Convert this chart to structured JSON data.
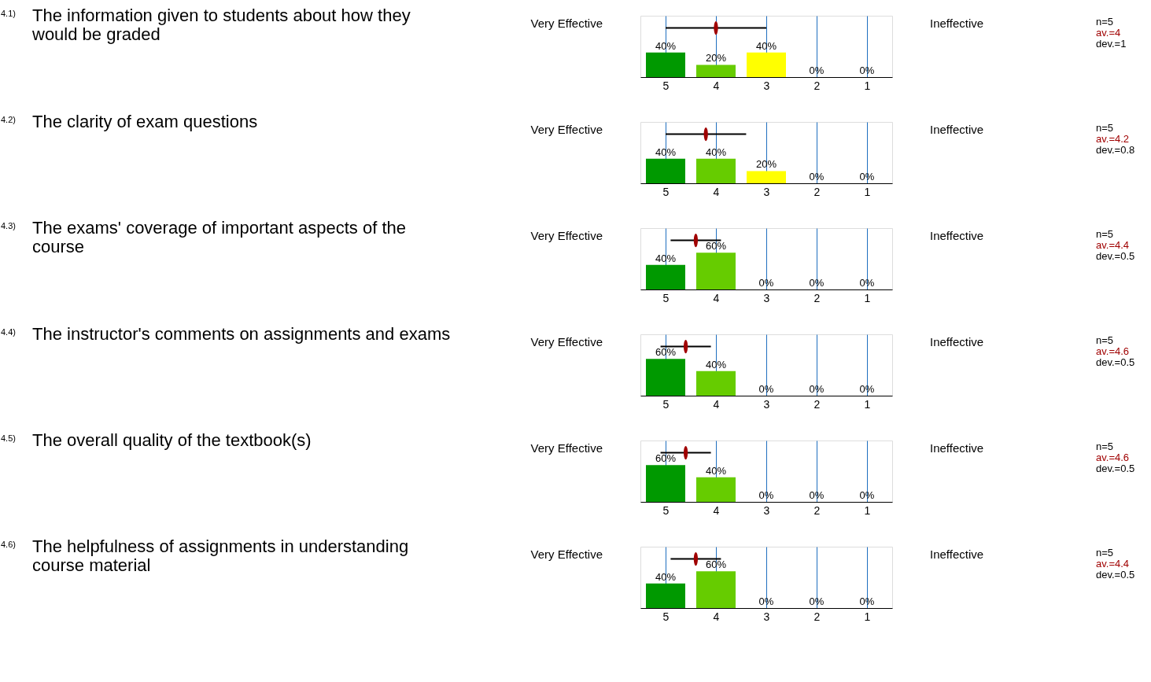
{
  "chart_data": [
    {
      "type": "bar",
      "x": [
        5,
        4,
        3,
        2,
        1
      ],
      "xlim": [
        5.5,
        0.5
      ],
      "xticks": [
        5,
        4,
        3,
        2,
        1
      ],
      "ylim": [
        0,
        100
      ],
      "grid": "x",
      "tick_labels": "x",
      "series": [
        {
          "values": [
            40,
            20,
            40,
            0,
            0
          ],
          "colors": [
            "#009900",
            "#66cc00",
            "#ffff00",
            "#ff9900",
            "#ff3300"
          ],
          "value_labels": [
            "40%",
            "20%",
            "40%",
            "0%",
            "0%"
          ]
        },
        {
          "type": "scatter",
          "x": [
            4
          ],
          "values": [
            80
          ],
          "xerrors": [
            1
          ],
          "color": "#a00000"
        }
      ],
      "annotations": [
        "4.1)",
        "The information given to students about how they would be graded",
        "Very Effective",
        "Ineffective",
        "n=5",
        "av.=4",
        "dev.=1"
      ]
    },
    {
      "type": "bar",
      "x": [
        5,
        4,
        3,
        2,
        1
      ],
      "xlim": [
        5.5,
        0.5
      ],
      "xticks": [
        5,
        4,
        3,
        2,
        1
      ],
      "ylim": [
        0,
        100
      ],
      "grid": "x",
      "tick_labels": "x",
      "series": [
        {
          "values": [
            40,
            40,
            20,
            0,
            0
          ],
          "colors": [
            "#009900",
            "#66cc00",
            "#ffff00",
            "#ff9900",
            "#ff3300"
          ],
          "value_labels": [
            "40%",
            "40%",
            "20%",
            "0%",
            "0%"
          ]
        },
        {
          "type": "scatter",
          "x": [
            4.2
          ],
          "values": [
            80
          ],
          "xerrors": [
            0.8
          ],
          "color": "#a00000"
        }
      ],
      "annotations": [
        "4.2)",
        "The clarity of exam questions",
        "Very Effective",
        "Ineffective",
        "n=5",
        "av.=4.2",
        "dev.=0.8"
      ]
    },
    {
      "type": "bar",
      "x": [
        5,
        4,
        3,
        2,
        1
      ],
      "xlim": [
        5.5,
        0.5
      ],
      "xticks": [
        5,
        4,
        3,
        2,
        1
      ],
      "ylim": [
        0,
        100
      ],
      "grid": "x",
      "tick_labels": "x",
      "series": [
        {
          "values": [
            40,
            60,
            0,
            0,
            0
          ],
          "colors": [
            "#009900",
            "#66cc00",
            "#ffff00",
            "#ff9900",
            "#ff3300"
          ],
          "value_labels": [
            "40%",
            "60%",
            "0%",
            "0%",
            "0%"
          ]
        },
        {
          "type": "scatter",
          "x": [
            4.4
          ],
          "values": [
            80
          ],
          "xerrors": [
            0.5
          ],
          "color": "#a00000"
        }
      ],
      "annotations": [
        "4.3)",
        "The exams' coverage of important aspects of the course",
        "Very Effective",
        "Ineffective",
        "n=5",
        "av.=4.4",
        "dev.=0.5"
      ]
    },
    {
      "type": "bar",
      "x": [
        5,
        4,
        3,
        2,
        1
      ],
      "xlim": [
        5.5,
        0.5
      ],
      "xticks": [
        5,
        4,
        3,
        2,
        1
      ],
      "ylim": [
        0,
        100
      ],
      "grid": "x",
      "tick_labels": "x",
      "series": [
        {
          "values": [
            60,
            40,
            0,
            0,
            0
          ],
          "colors": [
            "#009900",
            "#66cc00",
            "#ffff00",
            "#ff9900",
            "#ff3300"
          ],
          "value_labels": [
            "60%",
            "40%",
            "0%",
            "0%",
            "0%"
          ]
        },
        {
          "type": "scatter",
          "x": [
            4.6
          ],
          "values": [
            80
          ],
          "xerrors": [
            0.5
          ],
          "color": "#a00000"
        }
      ],
      "annotations": [
        "4.4)",
        "The instructor's comments on assignments and exams",
        "Very Effective",
        "Ineffective",
        "n=5",
        "av.=4.6",
        "dev.=0.5"
      ]
    },
    {
      "type": "bar",
      "x": [
        5,
        4,
        3,
        2,
        1
      ],
      "xlim": [
        5.5,
        0.5
      ],
      "xticks": [
        5,
        4,
        3,
        2,
        1
      ],
      "ylim": [
        0,
        100
      ],
      "grid": "x",
      "tick_labels": "x",
      "series": [
        {
          "values": [
            60,
            40,
            0,
            0,
            0
          ],
          "colors": [
            "#009900",
            "#66cc00",
            "#ffff00",
            "#ff9900",
            "#ff3300"
          ],
          "value_labels": [
            "60%",
            "40%",
            "0%",
            "0%",
            "0%"
          ]
        },
        {
          "type": "scatter",
          "x": [
            4.6
          ],
          "values": [
            80
          ],
          "xerrors": [
            0.5
          ],
          "color": "#a00000"
        }
      ],
      "annotations": [
        "4.5)",
        "The overall quality of the textbook(s)",
        "Very Effective",
        "Ineffective",
        "n=5",
        "av.=4.6",
        "dev.=0.5"
      ]
    },
    {
      "type": "bar",
      "x": [
        5,
        4,
        3,
        2,
        1
      ],
      "xlim": [
        5.5,
        0.5
      ],
      "xticks": [
        5,
        4,
        3,
        2,
        1
      ],
      "ylim": [
        0,
        100
      ],
      "grid": "x",
      "tick_labels": "x",
      "series": [
        {
          "values": [
            40,
            60,
            0,
            0,
            0
          ],
          "colors": [
            "#009900",
            "#66cc00",
            "#ffff00",
            "#ff9900",
            "#ff3300"
          ],
          "value_labels": [
            "40%",
            "60%",
            "0%",
            "0%",
            "0%"
          ]
        },
        {
          "type": "scatter",
          "x": [
            4.4
          ],
          "values": [
            80
          ],
          "xerrors": [
            0.5
          ],
          "color": "#a00000"
        }
      ],
      "annotations": [
        "4.6)",
        "The helpfulness of assignments in understanding course material",
        "Very Effective",
        "Ineffective",
        "n=5",
        "av.=4.4",
        "dev.=0.5"
      ]
    }
  ]
}
